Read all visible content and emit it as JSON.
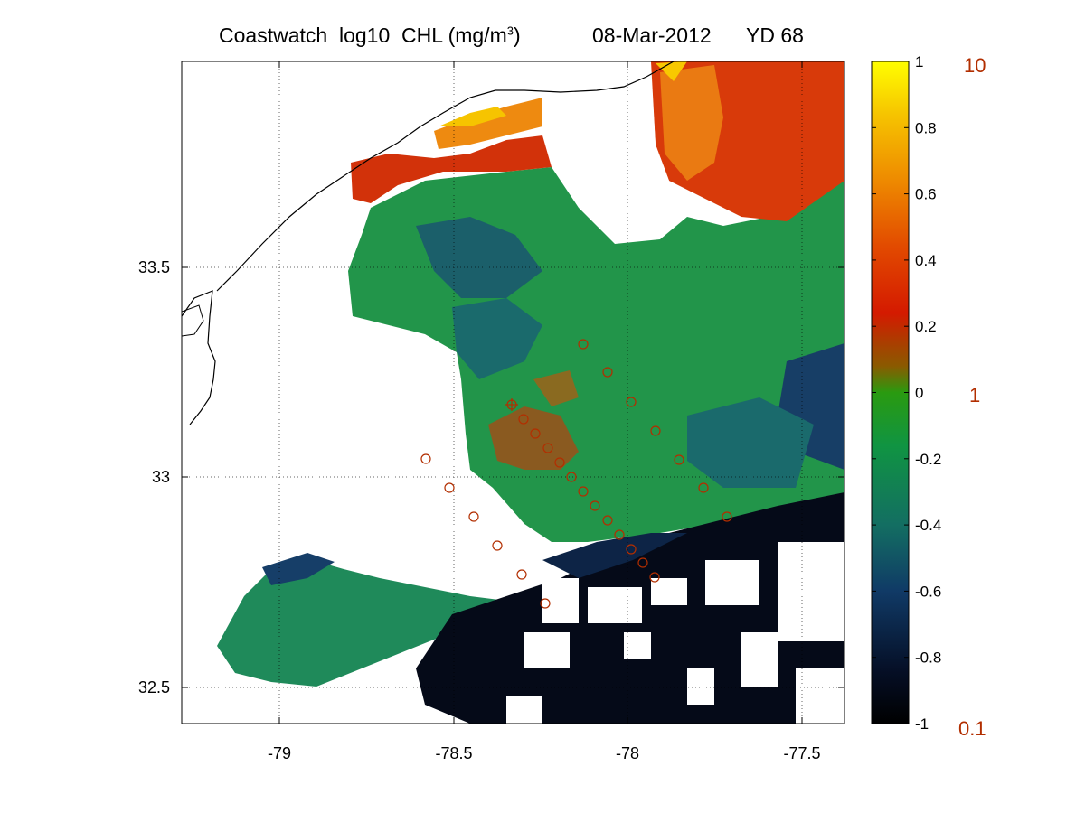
{
  "title": {
    "product": "Coastwatch",
    "variable": "log10",
    "quantity": "CHL (mg/m",
    "unit_exp": "3",
    "unit_close": ")",
    "date": "08-Mar-2012",
    "yearday": "YD 68"
  },
  "map": {
    "x_ticks": [
      "-79",
      "-78.5",
      "-78",
      "-77.5"
    ],
    "y_ticks": [
      "33.5",
      "33",
      "32.5"
    ],
    "grid": "dotted",
    "station_color": "#b22e00"
  },
  "colorbar": {
    "ticks": [
      "1",
      "0.8",
      "0.6",
      "0.4",
      "0.2",
      "0",
      "-0.2",
      "-0.4",
      "-0.6",
      "-0.8",
      "-1"
    ],
    "range": [
      -1,
      1
    ],
    "linear_labels": [
      "10",
      "1",
      "0.1"
    ],
    "linear_label_color": "#b22e00",
    "colors": [
      "#000000",
      "#0a1a3a",
      "#12406a",
      "#14765e",
      "#0e9a2a",
      "#8a5a00",
      "#d41a00",
      "#ec7400",
      "#f6b800",
      "#ffff00"
    ]
  },
  "legend_colors": {
    "land": "#ffffff",
    "coastline": "#000000"
  }
}
